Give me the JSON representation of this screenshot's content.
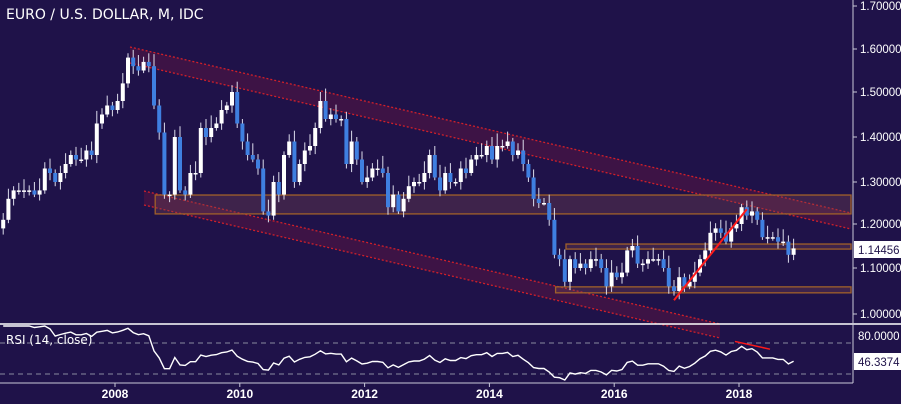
{
  "header": {
    "title": "EURO / U.S. DOLLAR, M, IDC"
  },
  "rsi": {
    "label": "RSI (14, close)",
    "last_value": "46.3374",
    "levels": [
      70,
      30
    ],
    "axis_label": "80.0000"
  },
  "colors": {
    "background": "#1f1249",
    "up": "#ffffff",
    "down": "#3f7fe0",
    "channel": "#d0202a",
    "zone_border": "#a0602a",
    "trendline": "#ff1a1a"
  },
  "chart_data": {
    "type": "candlestick",
    "title": "EURO / U.S. DOLLAR, M, IDC",
    "start_month": "2006-02",
    "interval": "monthly",
    "close": [
      1.19,
      1.21,
      1.26,
      1.28,
      1.28,
      1.28,
      1.28,
      1.27,
      1.28,
      1.33,
      1.32,
      1.3,
      1.32,
      1.34,
      1.36,
      1.35,
      1.35,
      1.37,
      1.36,
      1.43,
      1.45,
      1.47,
      1.46,
      1.48,
      1.52,
      1.58,
      1.56,
      1.55,
      1.57,
      1.56,
      1.47,
      1.41,
      1.27,
      1.27,
      1.4,
      1.28,
      1.27,
      1.32,
      1.32,
      1.42,
      1.4,
      1.42,
      1.43,
      1.46,
      1.47,
      1.5,
      1.43,
      1.39,
      1.36,
      1.35,
      1.33,
      1.23,
      1.22,
      1.3,
      1.27,
      1.36,
      1.39,
      1.3,
      1.34,
      1.37,
      1.38,
      1.42,
      1.48,
      1.44,
      1.45,
      1.44,
      1.44,
      1.34,
      1.39,
      1.35,
      1.3,
      1.31,
      1.33,
      1.33,
      1.32,
      1.24,
      1.27,
      1.23,
      1.26,
      1.29,
      1.3,
      1.3,
      1.32,
      1.36,
      1.31,
      1.28,
      1.32,
      1.3,
      1.3,
      1.33,
      1.32,
      1.35,
      1.36,
      1.36,
      1.38,
      1.35,
      1.38,
      1.38,
      1.39,
      1.36,
      1.37,
      1.34,
      1.31,
      1.26,
      1.25,
      1.25,
      1.21,
      1.13,
      1.12,
      1.07,
      1.12,
      1.1,
      1.11,
      1.1,
      1.12,
      1.12,
      1.1,
      1.06,
      1.09,
      1.08,
      1.09,
      1.14,
      1.15,
      1.11,
      1.11,
      1.12,
      1.12,
      1.12,
      1.1,
      1.06,
      1.05,
      1.08,
      1.06,
      1.07,
      1.09,
      1.12,
      1.14,
      1.18,
      1.19,
      1.18,
      1.16,
      1.19,
      1.2,
      1.24,
      1.22,
      1.23,
      1.21,
      1.17,
      1.17,
      1.17,
      1.16,
      1.16,
      1.13,
      1.14456
    ],
    "last_price": "1.14456",
    "y_ticks": [
      "1.70000",
      "1.60000",
      "1.50000",
      "1.40000",
      "1.30000",
      "1.20000",
      "1.10000",
      "1.00000"
    ],
    "x_ticks": [
      "2008",
      "2010",
      "2012",
      "2014",
      "2016",
      "2018"
    ],
    "annotations": {
      "zones": [
        {
          "from": "2008-09",
          "low": 1.224,
          "high": 1.269
        },
        {
          "from": "2015-04",
          "low": 1.143,
          "high": 1.1545
        },
        {
          "from": "2015-02",
          "low": 1.046,
          "high": 1.059
        }
      ],
      "trendline": {
        "from": [
          "2016-12",
          1.03
        ],
        "to": [
          "2018-02",
          1.235
        ]
      },
      "channels": [
        "upper descending channel",
        "lower descending channel"
      ]
    }
  }
}
